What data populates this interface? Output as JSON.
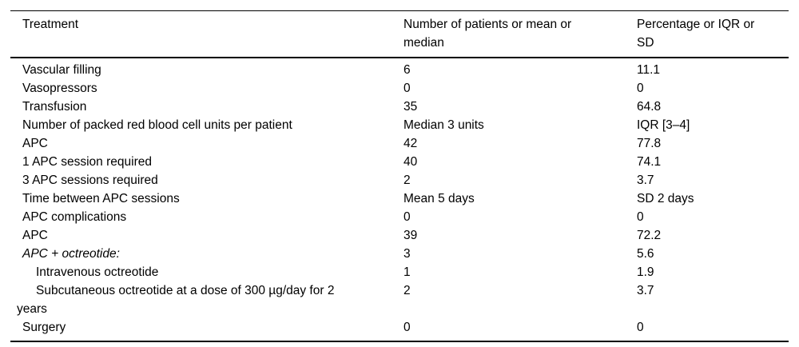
{
  "table": {
    "columns": [
      {
        "label": "Treatment"
      },
      {
        "label": "Number of patients or mean or median"
      },
      {
        "label": "Percentage or IQR or SD"
      }
    ],
    "rows": [
      {
        "treatment": "Vascular filling",
        "value": "6",
        "stat": "11.1",
        "style": "normal"
      },
      {
        "treatment": "Vasopressors",
        "value": "0",
        "stat": "0",
        "style": "normal"
      },
      {
        "treatment": "Transfusion",
        "value": "35",
        "stat": "64.8",
        "style": "normal"
      },
      {
        "treatment": "Number of packed red blood cell units per patient",
        "value": "Median 3 units",
        "stat": "IQR [3–4]",
        "style": "normal"
      },
      {
        "treatment": "APC",
        "value": "42",
        "stat": "77.8",
        "style": "normal"
      },
      {
        "treatment": "1 APC session required",
        "value": "40",
        "stat": "74.1",
        "style": "normal"
      },
      {
        "treatment": "3 APC sessions required",
        "value": "2",
        "stat": "3.7",
        "style": "normal"
      },
      {
        "treatment": "Time between APC sessions",
        "value": "Mean 5 days",
        "stat": "SD 2 days",
        "style": "normal"
      },
      {
        "treatment": "APC complications",
        "value": "0",
        "stat": "0",
        "style": "normal"
      },
      {
        "treatment": "APC",
        "value": "39",
        "stat": "72.2",
        "style": "normal"
      },
      {
        "treatment": "APC + octreotide:",
        "value": "3",
        "stat": "5.6",
        "style": "italic"
      },
      {
        "treatment": "Intravenous octreotide",
        "value": "1",
        "stat": "1.9",
        "style": "sub"
      },
      {
        "treatment": "Subcutaneous octreotide at a dose of 300 µg/day for 2 years",
        "value": "2",
        "stat": "3.7",
        "style": "sub"
      },
      {
        "treatment": "Surgery",
        "value": "0",
        "stat": "0",
        "style": "normal"
      }
    ],
    "colors": {
      "text": "#000000",
      "rule": "#000000",
      "background": "#ffffff"
    }
  }
}
